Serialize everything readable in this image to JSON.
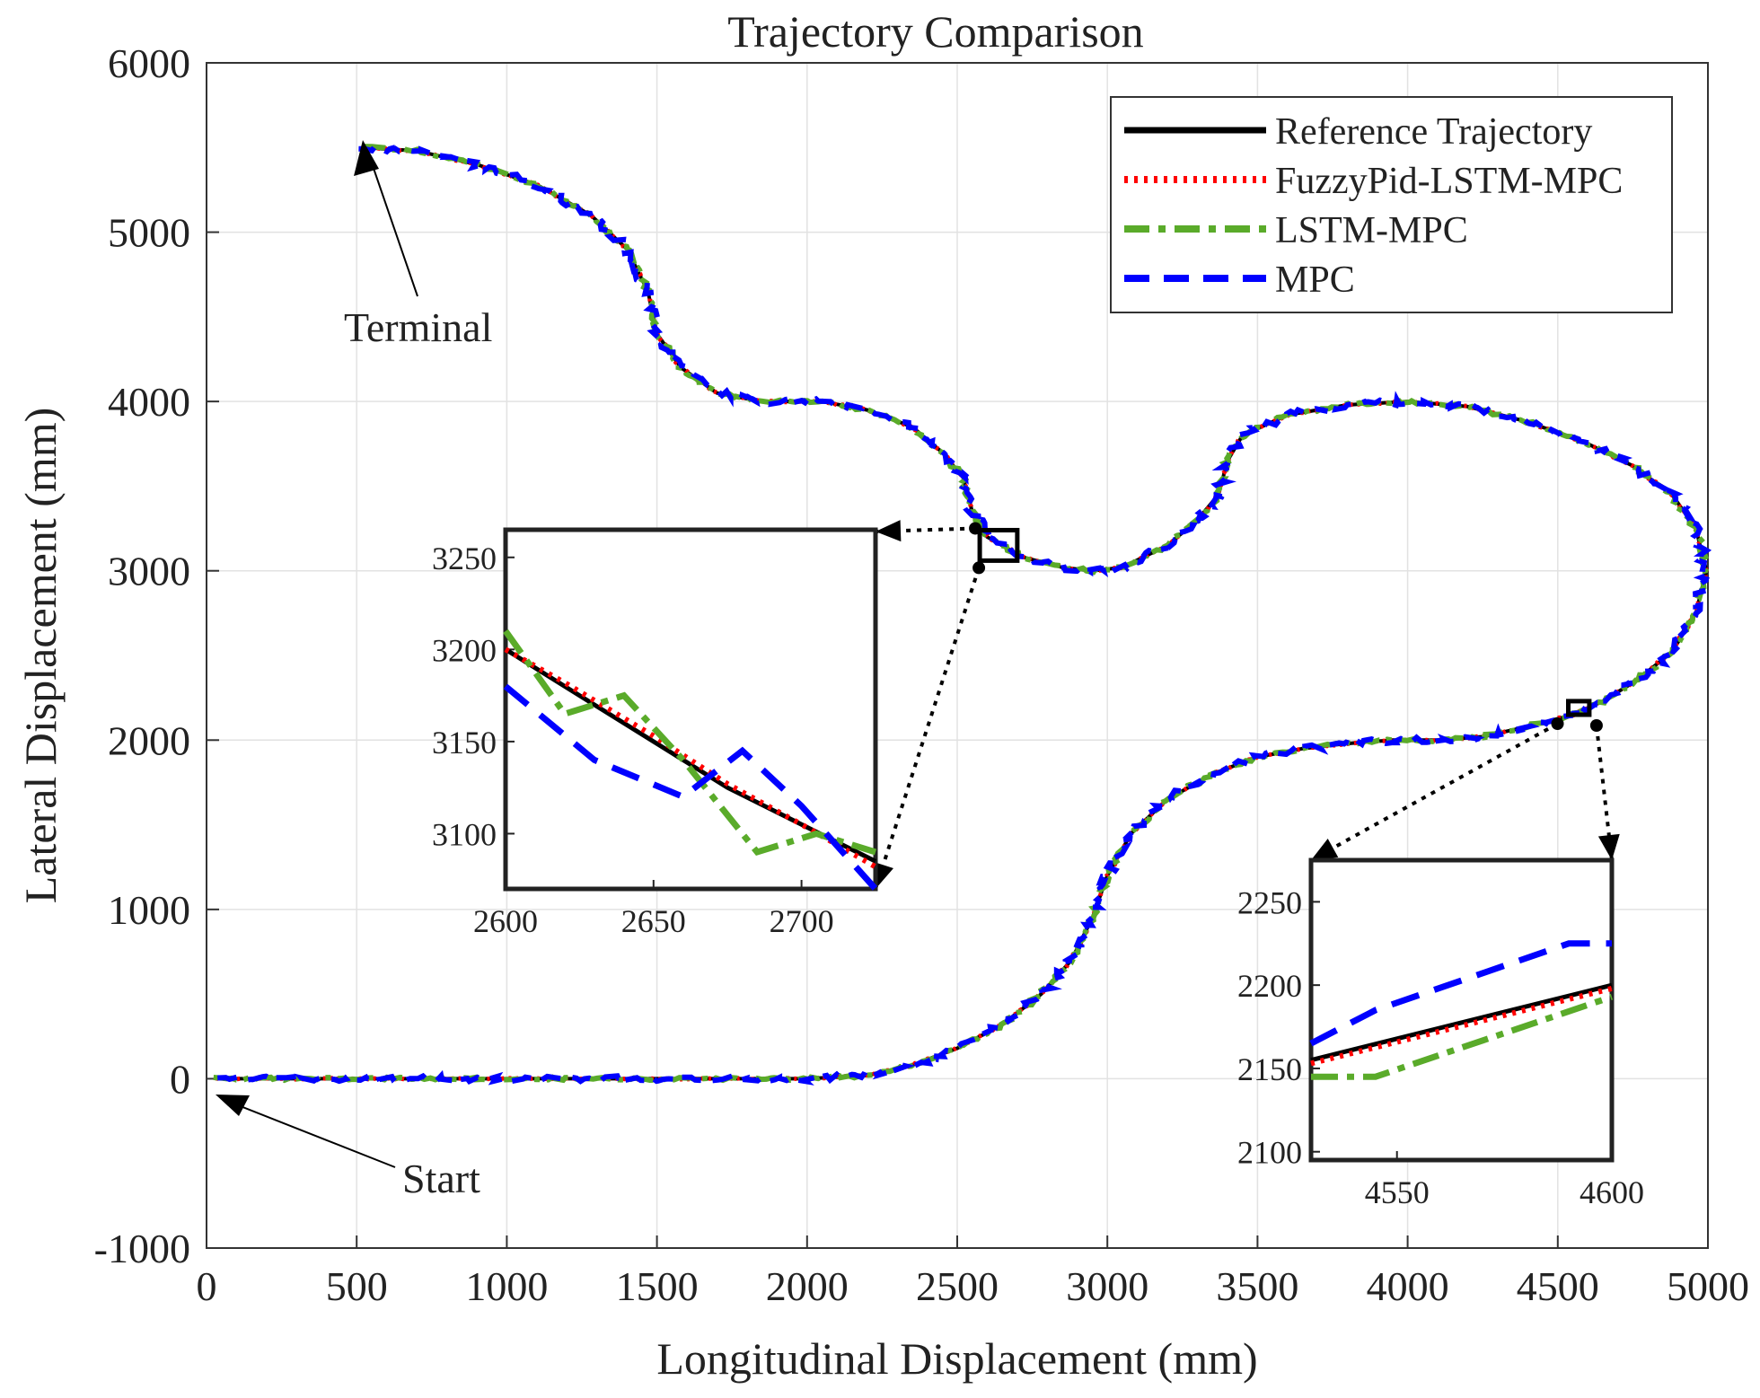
{
  "chart_data": {
    "type": "line",
    "title": "Trajectory Comparison",
    "xlabel": "Longitudinal Displacement (mm)",
    "ylabel": "Lateral Displacement (mm)",
    "xlim": [
      0,
      5000
    ],
    "ylim": [
      -1000,
      6000
    ],
    "xticks": [
      0,
      500,
      1000,
      1500,
      2000,
      2500,
      3000,
      3500,
      4000,
      4500,
      5000
    ],
    "yticks": [
      -1000,
      0,
      1000,
      2000,
      3000,
      4000,
      5000,
      6000
    ],
    "grid": true,
    "legend_position": "top-right",
    "colors": {
      "reference": "#000000",
      "fuzzy": "#ff0000",
      "lstm": "#5aab2a",
      "mpc": "#0000ff"
    },
    "series": [
      {
        "name": "Reference Trajectory",
        "style": "solid"
      },
      {
        "name": "FuzzyPid-LSTM-MPC",
        "style": "dotted"
      },
      {
        "name": "LSTM-MPC",
        "style": "dashdot"
      },
      {
        "name": "MPC",
        "style": "dashed"
      }
    ],
    "path": [
      [
        30,
        0
      ],
      [
        400,
        0
      ],
      [
        800,
        0
      ],
      [
        1200,
        0
      ],
      [
        1600,
        0
      ],
      [
        2000,
        0
      ],
      [
        2200,
        20
      ],
      [
        2350,
        80
      ],
      [
        2500,
        180
      ],
      [
        2650,
        320
      ],
      [
        2780,
        500
      ],
      [
        2880,
        700
      ],
      [
        2950,
        950
      ],
      [
        3000,
        1200
      ],
      [
        3080,
        1450
      ],
      [
        3200,
        1650
      ],
      [
        3350,
        1800
      ],
      [
        3500,
        1900
      ],
      [
        3650,
        1950
      ],
      [
        3800,
        1980
      ],
      [
        3950,
        2000
      ],
      [
        4100,
        2000
      ],
      [
        4250,
        2020
      ],
      [
        4400,
        2080
      ],
      [
        4550,
        2150
      ],
      [
        4650,
        2230
      ],
      [
        4760,
        2350
      ],
      [
        4880,
        2520
      ],
      [
        4960,
        2750
      ],
      [
        4995,
        3000
      ],
      [
        4960,
        3250
      ],
      [
        4880,
        3450
      ],
      [
        4750,
        3620
      ],
      [
        4600,
        3750
      ],
      [
        4400,
        3880
      ],
      [
        4200,
        3970
      ],
      [
        4000,
        4000
      ],
      [
        3800,
        3980
      ],
      [
        3600,
        3920
      ],
      [
        3450,
        3800
      ],
      [
        3400,
        3650
      ],
      [
        3370,
        3450
      ],
      [
        3300,
        3300
      ],
      [
        3200,
        3150
      ],
      [
        3050,
        3020
      ],
      [
        2950,
        3000
      ],
      [
        2850,
        3020
      ],
      [
        2720,
        3080
      ],
      [
        2600,
        3200
      ],
      [
        2550,
        3350
      ],
      [
        2520,
        3550
      ],
      [
        2450,
        3700
      ],
      [
        2350,
        3850
      ],
      [
        2200,
        3950
      ],
      [
        2050,
        4000
      ],
      [
        1850,
        4000
      ],
      [
        1700,
        4050
      ],
      [
        1580,
        4200
      ],
      [
        1500,
        4400
      ],
      [
        1470,
        4650
      ],
      [
        1400,
        4900
      ],
      [
        1280,
        5100
      ],
      [
        1100,
        5280
      ],
      [
        900,
        5400
      ],
      [
        700,
        5480
      ],
      [
        520,
        5500
      ]
    ],
    "annotations": [
      {
        "text": "Start",
        "points_to": [
          30,
          0
        ]
      },
      {
        "text": "Terminal",
        "points_to": [
          520,
          5500
        ]
      }
    ],
    "insets": [
      {
        "xlim": [
          2600,
          2725
        ],
        "ylim": [
          3070,
          3265
        ],
        "xticks": [
          2600,
          2650,
          2700
        ],
        "yticks": [
          3100,
          3150,
          3200,
          3250
        ],
        "region": [
          [
            2575,
            3060
          ],
          [
            2700,
            3240
          ]
        ],
        "series": {
          "reference": [
            [
              2600,
              3200
            ],
            [
              2620,
              3180
            ],
            [
              2650,
              3150
            ],
            [
              2675,
              3125
            ],
            [
              2700,
              3105
            ],
            [
              2725,
              3085
            ]
          ],
          "fuzzy": [
            [
              2600,
              3200
            ],
            [
              2620,
              3182
            ],
            [
              2650,
              3153
            ],
            [
              2675,
              3127
            ],
            [
              2700,
              3105
            ],
            [
              2725,
              3082
            ]
          ],
          "lstm": [
            [
              2600,
              3210
            ],
            [
              2620,
              3165
            ],
            [
              2640,
              3175
            ],
            [
              2660,
              3140
            ],
            [
              2685,
              3090
            ],
            [
              2705,
              3100
            ],
            [
              2725,
              3090
            ]
          ],
          "mpc": [
            [
              2600,
              3180
            ],
            [
              2630,
              3140
            ],
            [
              2660,
              3120
            ],
            [
              2680,
              3145
            ],
            [
              2700,
              3115
            ],
            [
              2725,
              3070
            ]
          ]
        }
      },
      {
        "xlim": [
          4530,
          4600
        ],
        "ylim": [
          2095,
          2275
        ],
        "xticks": [
          4550,
          4600
        ],
        "yticks": [
          2100,
          2150,
          2200,
          2250
        ],
        "region": [
          [
            4535,
            2150
          ],
          [
            4605,
            2230
          ]
        ],
        "series": {
          "reference": [
            [
              4530,
              2155
            ],
            [
              4600,
              2200
            ]
          ],
          "fuzzy": [
            [
              4530,
              2153
            ],
            [
              4600,
              2198
            ]
          ],
          "lstm": [
            [
              4530,
              2145
            ],
            [
              4545,
              2145
            ],
            [
              4600,
              2193
            ]
          ],
          "mpc": [
            [
              4530,
              2165
            ],
            [
              4545,
              2185
            ],
            [
              4590,
              2225
            ],
            [
              4600,
              2225
            ]
          ]
        }
      }
    ]
  }
}
